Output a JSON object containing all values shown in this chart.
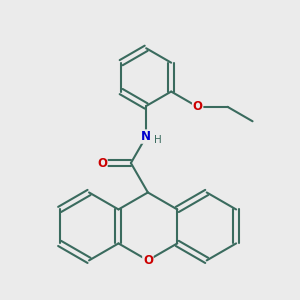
{
  "bg_color": "#ebebeb",
  "bond_color": "#3a6b5e",
  "oxygen_color": "#cc0000",
  "nitrogen_color": "#0000cc",
  "lw": 1.5,
  "figsize": [
    3.0,
    3.0
  ],
  "dpi": 100,
  "hex_r": 0.72,
  "xlim": [
    -1.0,
    5.5
  ],
  "ylim": [
    -2.8,
    4.2
  ]
}
